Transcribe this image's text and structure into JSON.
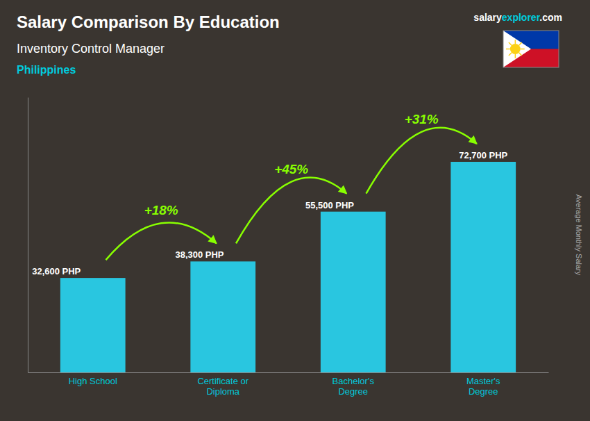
{
  "chart_data": {
    "type": "bar",
    "title": "Salary Comparison By Education",
    "subtitle": "Inventory Control Manager",
    "country": "Philippines",
    "source": [
      "salary",
      "explorer",
      ".com"
    ],
    "ylabel": "Average Monthly Salary",
    "categories": [
      "High School",
      "Certificate or\nDiploma",
      "Bachelor's\nDegree",
      "Master's\nDegree"
    ],
    "values": [
      32600,
      38300,
      55500,
      72700
    ],
    "value_labels": [
      "32,600 PHP",
      "38,300 PHP",
      "55,500 PHP",
      "72,700 PHP"
    ],
    "data_labels": true,
    "annotations": [
      "+18%",
      "+45%",
      "+31%"
    ],
    "color": "#29c6e0",
    "ylim": [
      0,
      95000
    ],
    "tick_labels": "x",
    "grid": false
  }
}
